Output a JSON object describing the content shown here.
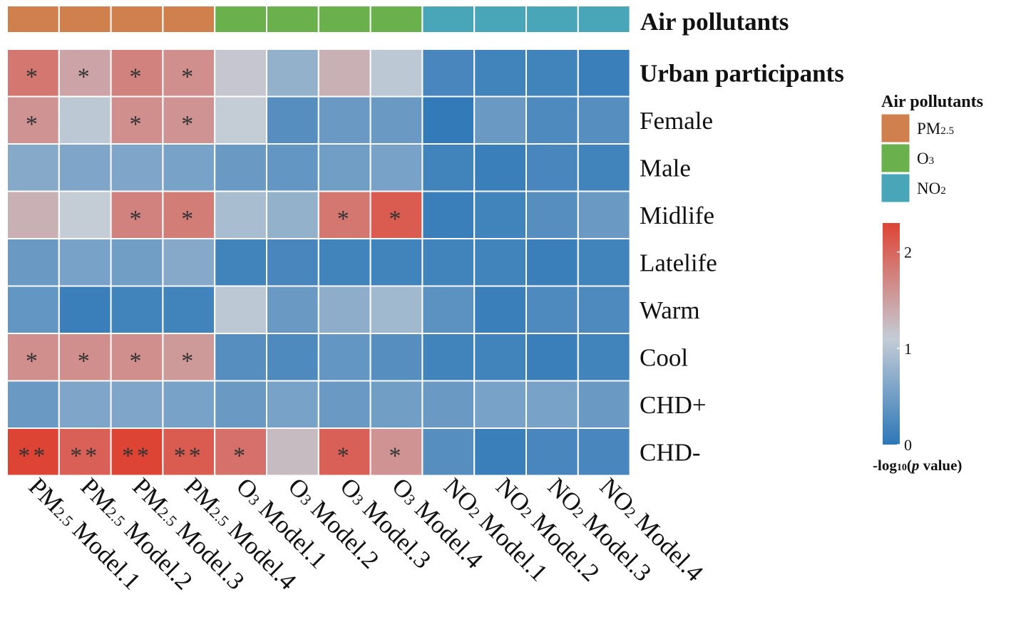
{
  "chart_data": {
    "type": "heatmap",
    "annotation_title": "Air pollutants",
    "columns": [
      {
        "label": "PM2.5 Model.1",
        "pollutant": "PM2.5",
        "model": "Model.1"
      },
      {
        "label": "PM2.5 Model.2",
        "pollutant": "PM2.5",
        "model": "Model.2"
      },
      {
        "label": "PM2.5 Model.3",
        "pollutant": "PM2.5",
        "model": "Model.3"
      },
      {
        "label": "PM2.5 Model.4",
        "pollutant": "PM2.5",
        "model": "Model.4"
      },
      {
        "label": "O3 Model.1",
        "pollutant": "O3",
        "model": "Model.1"
      },
      {
        "label": "O3 Model.2",
        "pollutant": "O3",
        "model": "Model.2"
      },
      {
        "label": "O3 Model.3",
        "pollutant": "O3",
        "model": "Model.3"
      },
      {
        "label": "O3 Model.4",
        "pollutant": "O3",
        "model": "Model.4"
      },
      {
        "label": "NO2 Model.1",
        "pollutant": "NO2",
        "model": "Model.1"
      },
      {
        "label": "NO2 Model.2",
        "pollutant": "NO2",
        "model": "Model.2"
      },
      {
        "label": "NO2 Model.3",
        "pollutant": "NO2",
        "model": "Model.3"
      },
      {
        "label": "NO2 Model.4",
        "pollutant": "NO2",
        "model": "Model.4"
      }
    ],
    "rows": [
      "Urban participants",
      "Female",
      "Male",
      "Midlife",
      "Latelife",
      "Warm",
      "Cool",
      "CHD+",
      "CHD-"
    ],
    "bold_rows": [
      "Urban participants"
    ],
    "values": [
      [
        1.85,
        1.45,
        1.75,
        1.65,
        1.15,
        0.75,
        1.35,
        1.05,
        0.2,
        0.15,
        0.15,
        0.1
      ],
      [
        1.6,
        1.05,
        1.65,
        1.6,
        1.1,
        0.3,
        0.45,
        0.45,
        0.05,
        0.45,
        0.25,
        0.3
      ],
      [
        0.65,
        0.6,
        0.6,
        0.55,
        0.45,
        0.4,
        0.5,
        0.55,
        0.15,
        0.1,
        0.2,
        0.15
      ],
      [
        1.35,
        1.1,
        1.75,
        1.8,
        0.9,
        0.75,
        1.85,
        2.1,
        0.1,
        0.15,
        0.3,
        0.45
      ],
      [
        0.45,
        0.55,
        0.5,
        0.65,
        0.15,
        0.2,
        0.15,
        0.15,
        0.15,
        0.15,
        0.1,
        0.15
      ],
      [
        0.4,
        0.1,
        0.15,
        0.15,
        1.05,
        0.45,
        0.7,
        0.85,
        0.35,
        0.1,
        0.25,
        0.25
      ],
      [
        1.65,
        1.65,
        1.65,
        1.55,
        0.3,
        0.25,
        0.4,
        0.3,
        0.15,
        0.15,
        0.1,
        0.15
      ],
      [
        0.45,
        0.6,
        0.6,
        0.55,
        0.45,
        0.55,
        0.45,
        0.5,
        0.45,
        0.55,
        0.55,
        0.45
      ],
      [
        2.3,
        2.05,
        2.3,
        2.1,
        1.9,
        1.25,
        2.05,
        1.6,
        0.3,
        0.1,
        0.2,
        0.2
      ]
    ],
    "significance": [
      [
        "*",
        "*",
        "*",
        "*",
        "",
        "",
        "",
        "",
        "",
        "",
        "",
        ""
      ],
      [
        "*",
        "",
        "*",
        "*",
        "",
        "",
        "",
        "",
        "",
        "",
        "",
        ""
      ],
      [
        "",
        "",
        "",
        "",
        "",
        "",
        "",
        "",
        "",
        "",
        "",
        ""
      ],
      [
        "",
        "",
        "*",
        "*",
        "",
        "",
        "*",
        "*",
        "",
        "",
        "",
        ""
      ],
      [
        "",
        "",
        "",
        "",
        "",
        "",
        "",
        "",
        "",
        "",
        "",
        ""
      ],
      [
        "",
        "",
        "",
        "",
        "",
        "",
        "",
        "",
        "",
        "",
        "",
        ""
      ],
      [
        "*",
        "*",
        "*",
        "*",
        "",
        "",
        "",
        "",
        "",
        "",
        "",
        ""
      ],
      [
        "",
        "",
        "",
        "",
        "",
        "",
        "",
        "",
        "",
        "",
        "",
        ""
      ],
      [
        "**",
        "**",
        "**",
        "**",
        "*",
        "",
        "*",
        "*",
        "",
        "",
        "",
        ""
      ]
    ],
    "pollutant_legend": {
      "title": "Air pollutants",
      "items": [
        {
          "name": "PM2.5",
          "base": "PM",
          "sub": "2.5",
          "color": "#d0804d"
        },
        {
          "name": "O3",
          "base": "O",
          "sub": "3",
          "color": "#6ab04c"
        },
        {
          "name": "NO2",
          "base": "NO",
          "sub": "2",
          "color": "#48a6b8"
        }
      ]
    },
    "color_scale": {
      "title_prefix": "-log",
      "title_sub": "10",
      "title_paren": "(",
      "title_italic": "p",
      "title_suffix": " value)",
      "range": [
        0,
        2.3
      ],
      "ticks": [
        0,
        1,
        2
      ],
      "stops": [
        {
          "value": 0,
          "color": "#2c77b7"
        },
        {
          "value": 1.1,
          "color": "#c4ccd6"
        },
        {
          "value": 2.3,
          "color": "#de4434"
        }
      ]
    }
  }
}
